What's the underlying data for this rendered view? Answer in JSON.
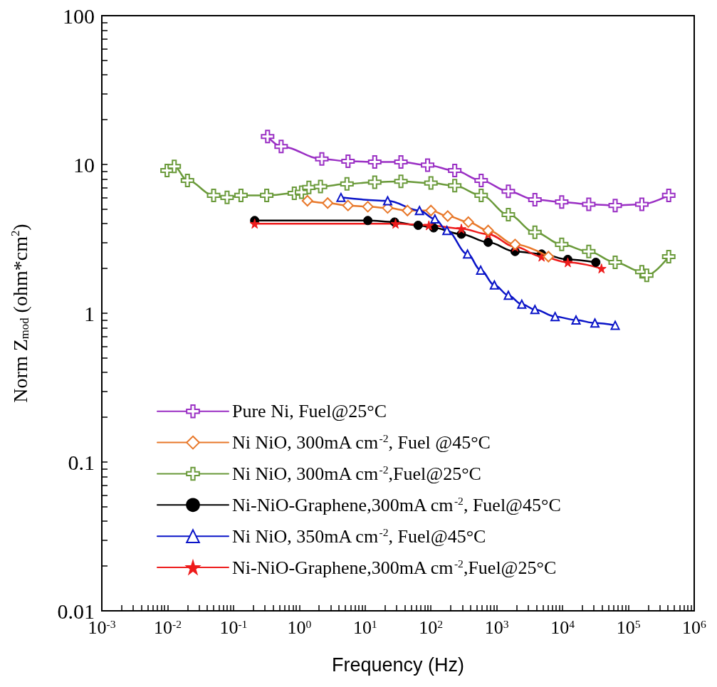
{
  "chart_data": {
    "type": "line",
    "xlabel": "Frequency (Hz)",
    "ylabel": "Norm Z$_{mod}$ (ohm*cm$^{2}$)",
    "log": "xy",
    "grid": false,
    "legend": "bottom left",
    "xlim": [
      0.001,
      1000000
    ],
    "ylim": [
      0.01,
      100
    ],
    "xticks": [
      {
        "value": 0.001,
        "label": "10$^{-3}$"
      },
      {
        "value": 0.002,
        "label": null
      },
      {
        "value": 0.003,
        "label": null
      },
      {
        "value": 0.004,
        "label": null
      },
      {
        "value": 0.005,
        "label": null
      },
      {
        "value": 0.006,
        "label": null
      },
      {
        "value": 0.007,
        "label": null
      },
      {
        "value": 0.008,
        "label": null
      },
      {
        "value": 0.009,
        "label": null
      },
      {
        "value": 0.01,
        "label": "10$^{-2}$"
      },
      {
        "value": 0.02,
        "label": null
      },
      {
        "value": 0.03,
        "label": null
      },
      {
        "value": 0.04,
        "label": null
      },
      {
        "value": 0.05,
        "label": null
      },
      {
        "value": 0.06,
        "label": null
      },
      {
        "value": 0.07,
        "label": null
      },
      {
        "value": 0.08,
        "label": null
      },
      {
        "value": 0.09,
        "label": null
      },
      {
        "value": 0.1,
        "label": "10$^{-1}$"
      },
      {
        "value": 0.2,
        "label": null
      },
      {
        "value": 0.3,
        "label": null
      },
      {
        "value": 0.4,
        "label": null
      },
      {
        "value": 0.5,
        "label": null
      },
      {
        "value": 0.6,
        "label": null
      },
      {
        "value": 0.7,
        "label": null
      },
      {
        "value": 0.8,
        "label": null
      },
      {
        "value": 0.9,
        "label": null
      },
      {
        "value": 1,
        "label": "10$^{0}$"
      },
      {
        "value": 2,
        "label": null
      },
      {
        "value": 3,
        "label": null
      },
      {
        "value": 4,
        "label": null
      },
      {
        "value": 5,
        "label": null
      },
      {
        "value": 6,
        "label": null
      },
      {
        "value": 7,
        "label": null
      },
      {
        "value": 8,
        "label": null
      },
      {
        "value": 9,
        "label": null
      },
      {
        "value": 10,
        "label": "10$^{1}$"
      },
      {
        "value": 20,
        "label": null
      },
      {
        "value": 30,
        "label": null
      },
      {
        "value": 40,
        "label": null
      },
      {
        "value": 50,
        "label": null
      },
      {
        "value": 60,
        "label": null
      },
      {
        "value": 70,
        "label": null
      },
      {
        "value": 80,
        "label": null
      },
      {
        "value": 90,
        "label": null
      },
      {
        "value": 100,
        "label": "10$^{2}$"
      },
      {
        "value": 200,
        "label": null
      },
      {
        "value": 300,
        "label": null
      },
      {
        "value": 400,
        "label": null
      },
      {
        "value": 500,
        "label": null
      },
      {
        "value": 600,
        "label": null
      },
      {
        "value": 700,
        "label": null
      },
      {
        "value": 800,
        "label": null
      },
      {
        "value": 900,
        "label": null
      },
      {
        "value": 1000,
        "label": "10$^{3}$"
      },
      {
        "value": 2000,
        "label": null
      },
      {
        "value": 3000,
        "label": null
      },
      {
        "value": 4000,
        "label": null
      },
      {
        "value": 5000,
        "label": null
      },
      {
        "value": 6000,
        "label": null
      },
      {
        "value": 7000,
        "label": null
      },
      {
        "value": 8000,
        "label": null
      },
      {
        "value": 9000,
        "label": null
      },
      {
        "value": 10000,
        "label": "10$^{4}$"
      },
      {
        "value": 20000,
        "label": null
      },
      {
        "value": 30000,
        "label": null
      },
      {
        "value": 40000,
        "label": null
      },
      {
        "value": 50000,
        "label": null
      },
      {
        "value": 60000,
        "label": null
      },
      {
        "value": 70000,
        "label": null
      },
      {
        "value": 80000,
        "label": null
      },
      {
        "value": 90000,
        "label": null
      },
      {
        "value": 100000,
        "label": "10$^{5}$"
      },
      {
        "value": 200000,
        "label": null
      },
      {
        "value": 300000,
        "label": null
      },
      {
        "value": 400000,
        "label": null
      },
      {
        "value": 500000,
        "label": null
      },
      {
        "value": 600000,
        "label": null
      },
      {
        "value": 700000,
        "label": null
      },
      {
        "value": 800000,
        "label": null
      },
      {
        "value": 900000,
        "label": null
      },
      {
        "value": 1000000,
        "label": "10$^{6}$"
      }
    ],
    "yticks": [
      0.01,
      {
        "value": 0.02,
        "label": null
      },
      {
        "value": 0.03,
        "label": null
      },
      {
        "value": 0.04,
        "label": null
      },
      {
        "value": 0.05,
        "label": null
      },
      {
        "value": 0.06,
        "label": null
      },
      {
        "value": 0.07,
        "label": null
      },
      {
        "value": 0.08,
        "label": null
      },
      {
        "value": 0.09,
        "label": null
      },
      0.1,
      {
        "value": 0.2,
        "label": null
      },
      {
        "value": 0.3,
        "label": null
      },
      {
        "value": 0.4,
        "label": null
      },
      {
        "value": 0.5,
        "label": null
      },
      {
        "value": 0.6,
        "label": null
      },
      {
        "value": 0.7,
        "label": null
      },
      {
        "value": 0.8,
        "label": null
      },
      {
        "value": 0.9,
        "label": null
      },
      1,
      {
        "value": 2,
        "label": null
      },
      {
        "value": 3,
        "label": null
      },
      {
        "value": 4,
        "label": null
      },
      {
        "value": 5,
        "label": null
      },
      {
        "value": 6,
        "label": null
      },
      {
        "value": 7,
        "label": null
      },
      {
        "value": 8,
        "label": null
      },
      {
        "value": 9,
        "label": null
      },
      10,
      {
        "value": 20,
        "label": null
      },
      {
        "value": 30,
        "label": null
      },
      {
        "value": 40,
        "label": null
      },
      {
        "value": 50,
        "label": null
      },
      {
        "value": 60,
        "label": null
      },
      {
        "value": 70,
        "label": null
      },
      {
        "value": 80,
        "label": null
      },
      {
        "value": 90,
        "label": null
      },
      100
    ],
    "series": [
      {
        "name": "Pure Ni, Fuel@25°C",
        "color": "#9a2fc4",
        "marker": "cross",
        "x": [
          0.33,
          0.53,
          2.2,
          5.5,
          14,
          35,
          89,
          230,
          580,
          1500,
          3800,
          9700,
          25000,
          63000,
          160000,
          410000
        ],
        "values": [
          15.4,
          13.2,
          10.9,
          10.5,
          10.4,
          10.4,
          9.9,
          9.1,
          7.8,
          6.6,
          5.8,
          5.6,
          5.4,
          5.3,
          5.4,
          6.2
        ]
      },
      {
        "name": "Ni NiO, 300mA cm$^{-2}$, Fuel @45°C",
        "color": "#e8782a",
        "marker": "diamond",
        "x": [
          1.33,
          2.7,
          5.5,
          11,
          22,
          44,
          100,
          180,
          370,
          740,
          1900,
          6100
        ],
        "values": [
          5.7,
          5.5,
          5.3,
          5.2,
          5.1,
          4.9,
          4.9,
          4.5,
          4.1,
          3.6,
          2.9,
          2.4
        ]
      },
      {
        "name": "Ni NiO, 300mA cm$^{-2}$,Fuel@25°C",
        "color": "#6a9a3a",
        "marker": "cross",
        "x": [
          0.0098,
          0.0126,
          0.02,
          0.05,
          0.08,
          0.13,
          0.32,
          0.84,
          1.08,
          1.4,
          2.1,
          5.3,
          14,
          35,
          100,
          230,
          580,
          1500,
          3800,
          9700,
          25000,
          63000,
          160000,
          190000,
          410000
        ],
        "values": [
          9.1,
          9.7,
          7.8,
          6.2,
          6.0,
          6.2,
          6.2,
          6.4,
          6.5,
          7.0,
          7.1,
          7.4,
          7.6,
          7.7,
          7.5,
          7.2,
          6.2,
          4.6,
          3.5,
          2.9,
          2.6,
          2.2,
          1.9,
          1.8,
          2.4
        ]
      },
      {
        "name": "Ni-NiO-Graphene,300mA cm$^{-2}$, Fuel@45°C",
        "color": "#000000",
        "marker": "circle",
        "x": [
          0.21,
          11,
          28,
          64,
          110,
          290,
          740,
          1900,
          4800,
          12000,
          32000
        ],
        "values": [
          4.2,
          4.2,
          4.1,
          3.9,
          3.75,
          3.4,
          3.0,
          2.6,
          2.5,
          2.3,
          2.2
        ]
      },
      {
        "name": "Ni NiO, 350mA cm$^{-2}$, Fuel@45°C",
        "color": "#0a14c8",
        "marker": "triangle",
        "x": [
          4.3,
          22,
          67,
          115,
          175,
          360,
          570,
          920,
          1500,
          2400,
          3800,
          7700,
          16000,
          31000,
          63000
        ],
        "values": [
          6.0,
          5.7,
          4.9,
          4.3,
          3.6,
          2.5,
          1.95,
          1.55,
          1.32,
          1.15,
          1.06,
          0.95,
          0.9,
          0.86,
          0.83
        ]
      },
      {
        "name": "Ni-NiO-Graphene,300mA cm$^{-2}$,Fuel@25°C",
        "color": "#ee1c1c",
        "marker": "star",
        "x": [
          0.21,
          29,
          93,
          290,
          740,
          1900,
          4800,
          12000,
          39000
        ],
        "values": [
          4.0,
          4.0,
          3.9,
          3.7,
          3.4,
          2.8,
          2.4,
          2.2,
          2.0
        ]
      }
    ]
  }
}
